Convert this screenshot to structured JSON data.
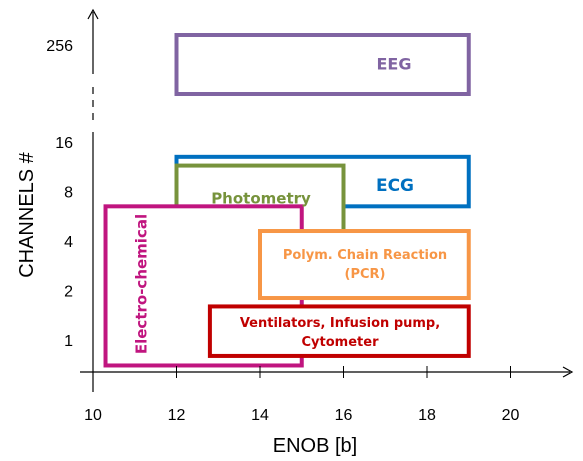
{
  "chart_data": {
    "type": "range-box",
    "xlabel": "ENOB [b]",
    "ylabel": "CHANNELS #",
    "x_ticks": [
      10,
      12,
      14,
      16,
      18,
      20
    ],
    "y_ticks": [
      "1",
      "2",
      "4",
      "8",
      "16",
      "256"
    ],
    "x_range": [
      9.8,
      21.5
    ],
    "y_scale": "log2 with axis break between 16 and 256",
    "grid": false,
    "regions": [
      {
        "name": "EEG",
        "enob": [
          12,
          19
        ],
        "channels": [
          256,
          256
        ],
        "color": "#8064A2",
        "label_color": "#8064A2"
      },
      {
        "name": "ECG",
        "enob": [
          12,
          19
        ],
        "channels": [
          6.5,
          13
        ],
        "color": "#0070C0",
        "label_color": "#0070C0"
      },
      {
        "name": "Photometry",
        "enob": [
          12,
          16
        ],
        "channels": [
          1.8,
          11.5
        ],
        "color": "#77933C",
        "label_color": "#77933C"
      },
      {
        "name": "Electro-chemical",
        "enob": [
          10.3,
          15
        ],
        "channels": [
          0.7,
          6.5
        ],
        "color": "#C0157F",
        "label_color": "#C0157F"
      },
      {
        "name": "Polym. Chain Reaction (PCR)",
        "label_lines": [
          "Polym. Chain Reaction",
          "(PCR)"
        ],
        "enob": [
          14,
          19
        ],
        "channels": [
          1.8,
          4.6
        ],
        "color": "#F79646",
        "label_color": "#F79646"
      },
      {
        "name": "Ventilators, Infusion pump, Cytometer",
        "label_lines": [
          "Ventilators, Infusion pump,",
          "Cytometer"
        ],
        "enob": [
          12.8,
          19
        ],
        "channels": [
          0.8,
          1.6
        ],
        "color": "#C00000",
        "label_color": "#C00000"
      }
    ]
  }
}
